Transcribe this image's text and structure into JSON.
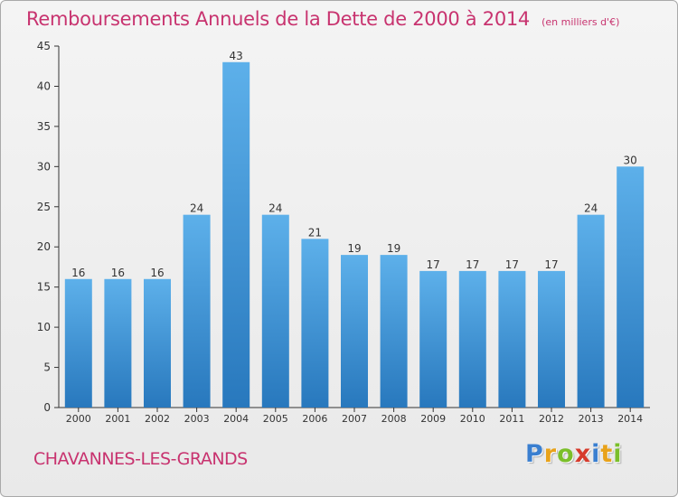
{
  "title": "Remboursements Annuels de la Dette de 2000 à 2014",
  "unit_note": "(en milliers d'€)",
  "city": "CHAVANNES-LES-GRANDS",
  "logo": {
    "text": "Proxiti",
    "letters": [
      {
        "char": "P",
        "color": "#3a7fd0"
      },
      {
        "char": "r",
        "color": "#e8a21a"
      },
      {
        "char": "o",
        "color": "#7bbf2a"
      },
      {
        "char": "x",
        "color": "#d63a2b"
      },
      {
        "char": "i",
        "color": "#3a7fd0"
      },
      {
        "char": "t",
        "color": "#e8a21a"
      },
      {
        "char": "i",
        "color": "#7bbf2a"
      }
    ]
  },
  "colors": {
    "title": "#c8336f",
    "bar_top": "#5db0ea",
    "bar_bottom": "#2878bd",
    "axis": "#333333"
  },
  "chart_data": {
    "type": "bar",
    "title": "Remboursements Annuels de la Dette de 2000 à 2014",
    "xlabel": "",
    "ylabel": "",
    "categories": [
      "2000",
      "2001",
      "2002",
      "2003",
      "2004",
      "2005",
      "2006",
      "2007",
      "2008",
      "2009",
      "2010",
      "2011",
      "2012",
      "2013",
      "2014"
    ],
    "values": [
      16,
      16,
      16,
      24,
      43,
      24,
      21,
      19,
      19,
      17,
      17,
      17,
      17,
      24,
      30
    ],
    "ylim": [
      0,
      45
    ],
    "yticks": [
      0,
      5,
      10,
      15,
      20,
      25,
      30,
      35,
      40,
      45
    ],
    "grid": false,
    "legend": "none"
  }
}
